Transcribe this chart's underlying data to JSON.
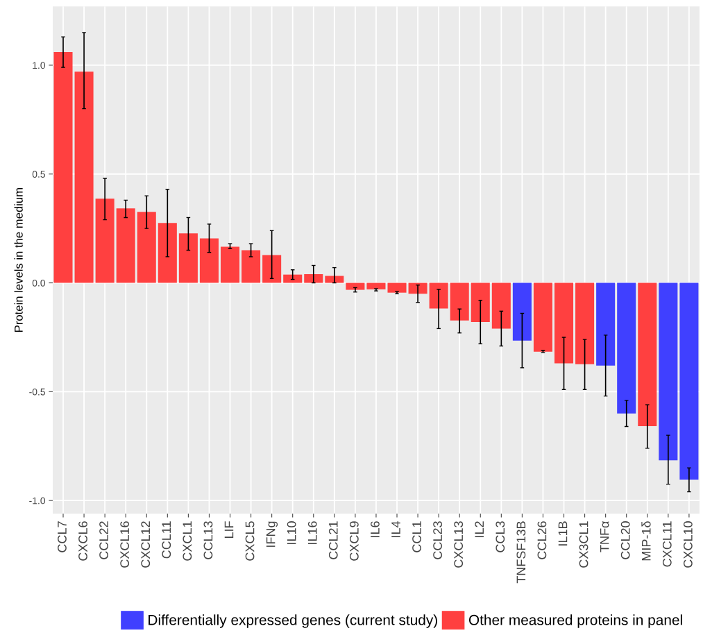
{
  "chart_data": {
    "type": "bar",
    "ylabel": "Protein levels in the medium",
    "categories": [
      "CCL7",
      "CXCL6",
      "CCL22",
      "CXCL16",
      "CXCL12",
      "CCL11",
      "CXCL1",
      "CCL13",
      "LIF",
      "CXCL5",
      "IFNg",
      "IL10",
      "IL16",
      "CCL21",
      "CXCL9",
      "IL6",
      "IL4",
      "CCL1",
      "CCL23",
      "CXCL13",
      "IL2",
      "CCL3",
      "TNFSF13B",
      "CCL26",
      "IL1B",
      "CX3CL1",
      "TNFα",
      "CCL20",
      "MIP-1δ",
      "CXCL11",
      "CXCL10"
    ],
    "series": [
      {
        "name": "Differentially expressed genes (current study)",
        "color": "#4040ff",
        "values": [
          null,
          null,
          null,
          null,
          null,
          null,
          null,
          null,
          null,
          null,
          null,
          null,
          null,
          null,
          null,
          null,
          null,
          null,
          null,
          null,
          null,
          null,
          -0.265,
          null,
          null,
          null,
          -0.38,
          -0.6,
          null,
          -0.815,
          -0.904
        ],
        "errors": [
          null,
          null,
          null,
          null,
          null,
          null,
          null,
          null,
          null,
          null,
          null,
          null,
          null,
          null,
          null,
          null,
          null,
          null,
          null,
          null,
          null,
          null,
          [
            -0.39,
            -0.14
          ],
          null,
          null,
          null,
          [
            -0.52,
            -0.24
          ],
          [
            -0.66,
            -0.54
          ],
          null,
          [
            -0.925,
            -0.7
          ],
          [
            -0.96,
            -0.85
          ]
        ]
      },
      {
        "name": "Other measured proteins in panel",
        "color": "#ff4040",
        "values": [
          1.06,
          0.97,
          0.387,
          0.342,
          0.326,
          0.275,
          0.227,
          0.204,
          0.166,
          0.15,
          0.128,
          0.038,
          0.04,
          0.032,
          -0.032,
          -0.03,
          -0.045,
          -0.05,
          -0.118,
          -0.173,
          -0.18,
          -0.21,
          null,
          -0.316,
          -0.37,
          -0.374,
          null,
          null,
          -0.658,
          null,
          null
        ],
        "errors": [
          [
            0.99,
            1.13
          ],
          [
            0.8,
            1.15
          ],
          [
            0.29,
            0.48
          ],
          [
            0.3,
            0.38
          ],
          [
            0.25,
            0.4
          ],
          [
            0.12,
            0.43
          ],
          [
            0.15,
            0.3
          ],
          [
            0.14,
            0.27
          ],
          [
            0.157,
            0.18
          ],
          [
            0.12,
            0.18
          ],
          [
            0.02,
            0.24
          ],
          [
            0.016,
            0.06
          ],
          [
            0.0,
            0.08
          ],
          [
            0.0,
            0.07
          ],
          [
            -0.042,
            -0.022
          ],
          [
            -0.037,
            -0.027
          ],
          [
            -0.05,
            -0.04
          ],
          [
            -0.09,
            -0.01
          ],
          [
            -0.21,
            -0.03
          ],
          [
            -0.23,
            -0.12
          ],
          [
            -0.28,
            -0.08
          ],
          [
            -0.29,
            -0.13
          ],
          null,
          [
            -0.32,
            -0.31
          ],
          [
            -0.49,
            -0.25
          ],
          [
            -0.49,
            -0.26
          ],
          null,
          null,
          [
            -0.76,
            -0.56
          ],
          null,
          null
        ]
      }
    ],
    "ylim": [
      -1.06,
      1.27
    ],
    "yticks": [
      {
        "value": -1.0,
        "label": "-1.0"
      },
      {
        "value": -0.5,
        "label": "-0.5"
      },
      {
        "value": 0.0,
        "label": "0.0"
      },
      {
        "value": 0.5,
        "label": "0.5"
      },
      {
        "value": 1.0,
        "label": "1.0"
      }
    ],
    "grid": true,
    "legend": "bottom"
  }
}
